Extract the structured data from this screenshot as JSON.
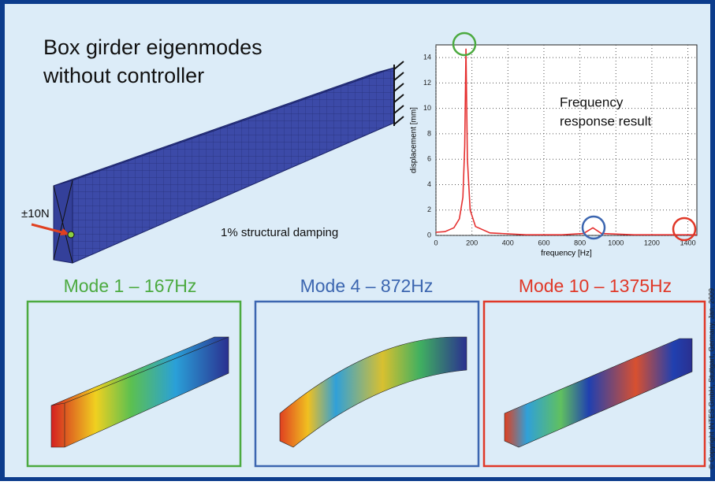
{
  "title": [
    "Box girder eigenmodes",
    "without controller"
  ],
  "force_label": "±10N",
  "damping_label": "1% structural damping",
  "annotation": [
    "Frequency",
    "response result"
  ],
  "modes": [
    "Mode 1 – 167Hz",
    "Mode 4 – 872Hz",
    "Mode 10 – 1375Hz"
  ],
  "copyright": "© Copyright INTES GmbH, Stuttgart, Germany, Jan. 2009",
  "chart_data": {
    "type": "line",
    "xlabel": "frequency [Hz]",
    "ylabel": "displacement [mm]",
    "x": [
      0,
      50,
      100,
      130,
      150,
      160,
      167,
      175,
      190,
      220,
      300,
      500,
      700,
      820,
      872,
      920,
      1100,
      1375,
      1450
    ],
    "values": [
      0.25,
      0.3,
      0.6,
      1.3,
      3,
      7,
      14.7,
      6,
      2,
      0.7,
      0.2,
      0.05,
      0.05,
      0.15,
      0.6,
      0.15,
      0.05,
      0.05,
      0.05
    ],
    "color": "#e53030",
    "xlim": [
      0,
      1450
    ],
    "ylim": [
      0,
      15
    ],
    "xticks": [
      0,
      200,
      400,
      600,
      800,
      1000,
      1200,
      1400
    ],
    "yticks": [
      0,
      2,
      4,
      6,
      8,
      10,
      12,
      14
    ],
    "grid": true
  }
}
